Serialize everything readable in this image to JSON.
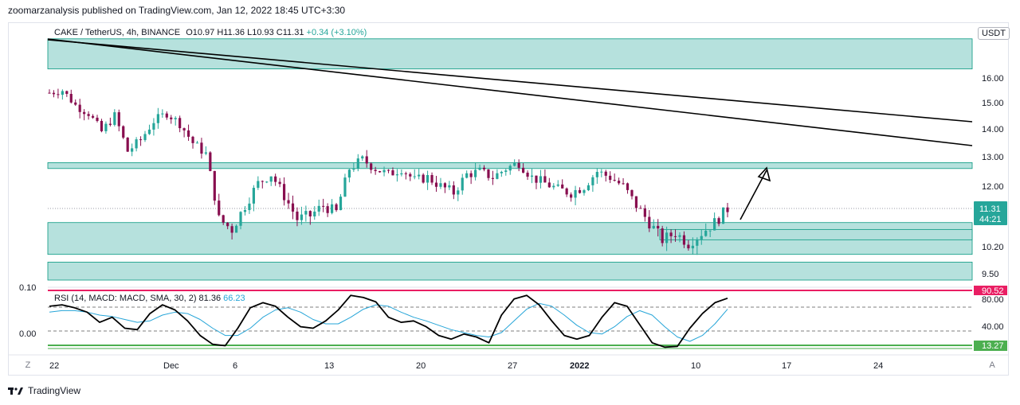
{
  "header": {
    "publisher_line": "zoomarzanalysis published on TradingView.com, Jan 12, 2022 18:45 UTC+3:30"
  },
  "legend": {
    "symbol": "CAKE / TetherUS, 4h, BINANCE",
    "open": "O10.97",
    "high": "H11.36",
    "low": "L10.93",
    "close": "C11.31",
    "change": "+0.34 (+3.10%)"
  },
  "currency_button": "USDT",
  "rsi_legend": {
    "label": "RSI (14, MACD: MACD, SMA, 30, 2)",
    "rsi_value": "81.36",
    "signal_value": "66.23"
  },
  "footer": {
    "brand": "TradingView"
  },
  "controls": {
    "left": "Z",
    "right": "A"
  },
  "colors": {
    "zone": "#b2dfdb",
    "zone_border": "#089981",
    "up": "#26a69a",
    "down": "#880e4f",
    "rsi": "#000000",
    "signal": "#26a5d8",
    "overbought": "#e91e63",
    "oversold": "#4caf50"
  },
  "chart_data": {
    "type": "candlestick",
    "title": "CAKE / TetherUS, 4h, BINANCE",
    "price_axis": {
      "ticks": [
        "16.00",
        "15.00",
        "14.00",
        "13.00",
        "12.00",
        "10.20",
        "9.50"
      ],
      "ylim": [
        9.3,
        17.2
      ]
    },
    "time_axis": {
      "ticks": [
        "22",
        "Dec",
        "6",
        "13",
        "20",
        "27",
        "2022",
        "10",
        "17",
        "24"
      ]
    },
    "last_price": {
      "value": "11.31",
      "countdown": "44:21"
    },
    "close_path": [
      [
        "22",
        15.4
      ],
      [
        "22",
        15.5
      ],
      [
        "24",
        14.9
      ],
      [
        "25",
        14.6
      ],
      [
        "26",
        13.9
      ],
      [
        "27",
        14.5
      ],
      [
        "28",
        13.2
      ],
      [
        "29",
        13.6
      ],
      [
        "30",
        14.3
      ],
      [
        "Dec",
        14.6
      ],
      [
        "Dec",
        14.2
      ],
      [
        "2",
        13.5
      ],
      [
        "3",
        13.1
      ],
      [
        "4",
        11.0
      ],
      [
        "5",
        10.7
      ],
      [
        "6",
        11.4
      ],
      [
        "7",
        12.1
      ],
      [
        "8",
        12.4
      ],
      [
        "9",
        11.7
      ],
      [
        "10",
        11.0
      ],
      [
        "11",
        11.1
      ],
      [
        "12",
        11.4
      ],
      [
        "13",
        11.2
      ],
      [
        "14",
        12.6
      ],
      [
        "15",
        12.9
      ],
      [
        "16",
        12.6
      ],
      [
        "17",
        12.4
      ],
      [
        "18",
        12.6
      ],
      [
        "19",
        12.2
      ],
      [
        "20",
        12.3
      ],
      [
        "21",
        12.0
      ],
      [
        "22",
        11.8
      ],
      [
        "23",
        12.4
      ],
      [
        "24",
        12.5
      ],
      [
        "25",
        12.3
      ],
      [
        "26",
        12.6
      ],
      [
        "27",
        12.8
      ],
      [
        "28",
        12.3
      ],
      [
        "29",
        12.1
      ],
      [
        "30",
        11.9
      ],
      [
        "31",
        11.8
      ],
      [
        "2022",
        12.0
      ],
      [
        "2",
        12.5
      ],
      [
        "3",
        12.3
      ],
      [
        "4",
        12.0
      ],
      [
        "5",
        11.4
      ],
      [
        "6",
        10.9
      ],
      [
        "7",
        10.4
      ],
      [
        "8",
        10.6
      ],
      [
        "9",
        10.3
      ],
      [
        "10",
        10.6
      ],
      [
        "11",
        10.9
      ],
      [
        "12",
        11.3
      ]
    ],
    "zones": [
      {
        "name": "upper-supply-zone",
        "from": 16.3,
        "to": 17.3
      },
      {
        "name": "mid-resistance-zone",
        "from": 12.6,
        "to": 12.8
      },
      {
        "name": "support-zone",
        "from": 10.0,
        "to": 10.9
      },
      {
        "name": "inner-support-zone",
        "from": 10.4,
        "to": 10.7
      },
      {
        "name": "lower-zone",
        "from": 9.3,
        "to": 9.8
      }
    ],
    "trendlines": [
      {
        "name": "upper-trendline",
        "from": [
          "21",
          17.4
        ],
        "to": [
          "Jan 17",
          14.2
        ]
      },
      {
        "name": "lower-trendline",
        "from": [
          "21",
          17.0
        ],
        "to": [
          "Jan 17",
          13.4
        ]
      }
    ],
    "projection_arrow": {
      "from": [
        "12",
        11.0
      ],
      "to": [
        "14",
        12.6
      ]
    },
    "rsi_panel": {
      "ticks": [
        "80.00",
        "40.00"
      ],
      "left_ticks": [
        "0.10",
        "0.00"
      ],
      "overbought_label": "90.52",
      "oversold_label": "13.27",
      "ylim": [
        10,
        95
      ],
      "rsi_values": [
        70,
        72,
        68,
        62,
        48,
        55,
        40,
        38,
        60,
        72,
        65,
        50,
        30,
        18,
        16,
        40,
        68,
        75,
        70,
        55,
        42,
        40,
        50,
        65,
        85,
        82,
        76,
        55,
        48,
        50,
        42,
        30,
        25,
        32,
        28,
        20,
        58,
        80,
        85,
        72,
        50,
        30,
        25,
        30,
        55,
        75,
        70,
        45,
        20,
        14,
        15,
        40,
        60,
        75,
        81
      ],
      "signal_values": [
        62,
        64,
        64,
        62,
        58,
        56,
        52,
        48,
        50,
        58,
        62,
        60,
        52,
        40,
        30,
        30,
        40,
        55,
        65,
        68,
        62,
        52,
        46,
        46,
        55,
        66,
        72,
        70,
        62,
        55,
        50,
        44,
        38,
        34,
        30,
        28,
        34,
        50,
        66,
        74,
        70,
        58,
        44,
        34,
        32,
        42,
        56,
        64,
        58,
        42,
        28,
        22,
        30,
        46,
        66
      ]
    }
  }
}
